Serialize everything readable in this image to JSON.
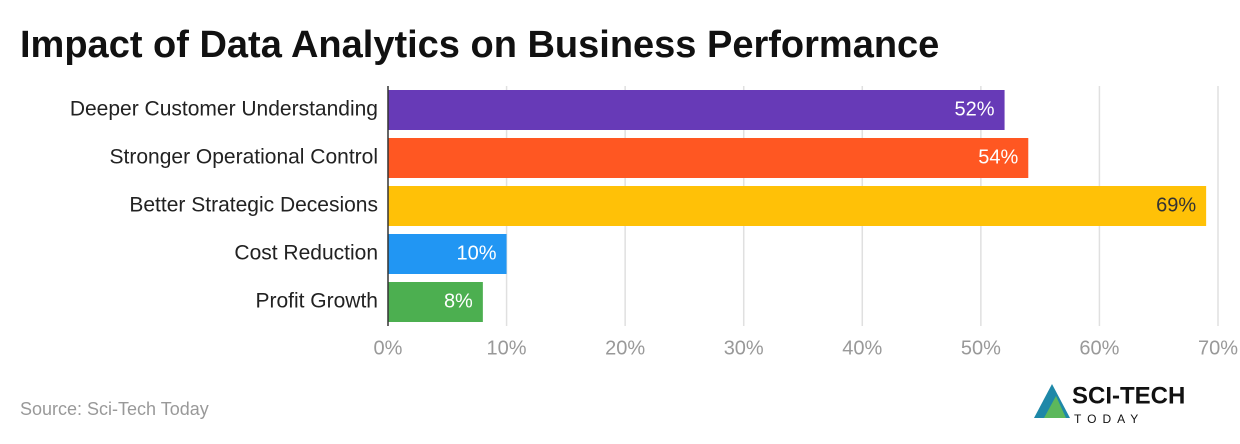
{
  "chart_data": {
    "type": "bar",
    "orientation": "horizontal",
    "title": "Impact of Data Analytics on Business Performance",
    "categories": [
      "Deeper Customer Understanding",
      "Stronger Operational Control",
      "Better Strategic Decesions",
      "Cost Reduction",
      "Profit Growth"
    ],
    "values": [
      52,
      54,
      69,
      10,
      8
    ],
    "value_labels": [
      "52%",
      "54%",
      "69%",
      "10%",
      "8%"
    ],
    "colors": [
      "#673ab7",
      "#ff5722",
      "#ffc107",
      "#2196f3",
      "#4caf50"
    ],
    "label_colors": [
      "#ffffff",
      "#ffffff",
      "#333333",
      "#ffffff",
      "#ffffff"
    ],
    "xlim": [
      0,
      70
    ],
    "xticks": [
      {
        "value": 0,
        "label": "0%"
      },
      {
        "value": 10,
        "label": "10%"
      },
      {
        "value": 20,
        "label": "20%"
      },
      {
        "value": 30,
        "label": "30%"
      },
      {
        "value": 40,
        "label": "40%"
      },
      {
        "value": 50,
        "label": "50%"
      },
      {
        "value": 60,
        "label": "60%"
      },
      {
        "value": 70,
        "label": "70%"
      }
    ],
    "grid": true,
    "source": "Source: Sci-Tech Today",
    "logo": {
      "line1": "SCI-TECH",
      "line2": "TODAY"
    }
  }
}
